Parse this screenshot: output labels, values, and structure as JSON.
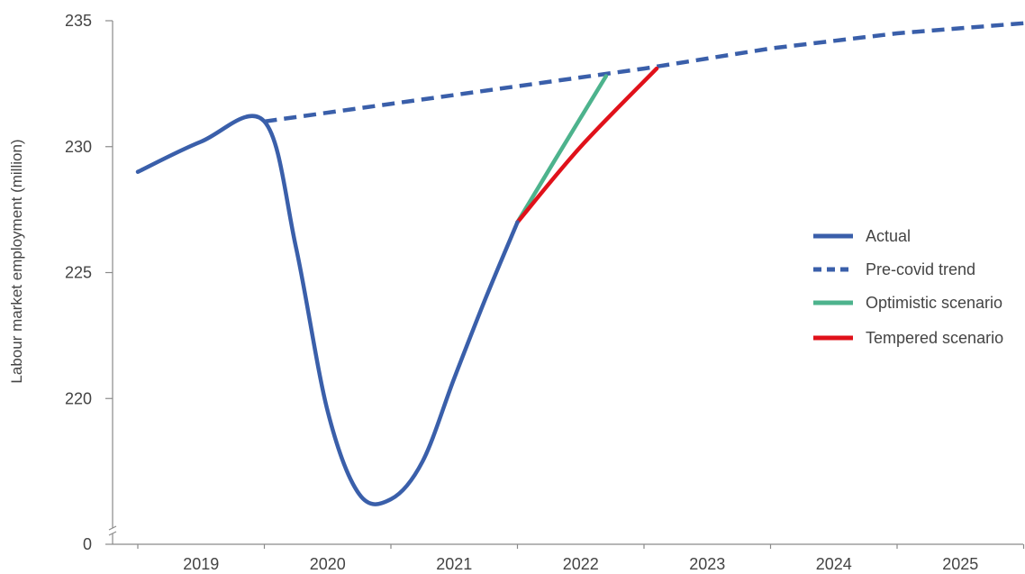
{
  "chart_data": {
    "type": "line",
    "title": "",
    "ylabel": "Labour market employment (million)",
    "xlabel": "",
    "x_categories": [
      "2019",
      "2020",
      "2021",
      "2022",
      "2023",
      "2024",
      "2025"
    ],
    "y_ticks": [
      "0",
      "220",
      "225",
      "230",
      "235"
    ],
    "ylim": [
      215,
      235
    ],
    "axis_break": true,
    "grid": false,
    "legend_position": "right",
    "series": [
      {
        "name": "Actual",
        "style": "solid",
        "color": "#3A5FAA",
        "points": [
          [
            2019.0,
            229.0
          ],
          [
            2019.5,
            230.2
          ],
          [
            2020.0,
            231.0
          ],
          [
            2020.25,
            226.0
          ],
          [
            2020.5,
            219.5
          ],
          [
            2020.75,
            216.2
          ],
          [
            2021.0,
            216.0
          ],
          [
            2021.25,
            217.5
          ],
          [
            2021.5,
            220.8
          ],
          [
            2021.75,
            224.0
          ],
          [
            2022.0,
            227.0
          ]
        ]
      },
      {
        "name": "Pre-covid trend",
        "style": "dashed",
        "color": "#3A5FAA",
        "points": [
          [
            2020.0,
            231.0
          ],
          [
            2021.0,
            231.7
          ],
          [
            2022.0,
            232.4
          ],
          [
            2023.0,
            233.1
          ],
          [
            2024.0,
            233.9
          ],
          [
            2025.0,
            234.5
          ],
          [
            2026.0,
            234.9
          ]
        ]
      },
      {
        "name": "Optimistic scenario",
        "style": "solid",
        "color": "#4DB38D",
        "points": [
          [
            2022.0,
            227.0
          ],
          [
            2022.3,
            229.5
          ],
          [
            2022.7,
            232.8
          ]
        ]
      },
      {
        "name": "Tempered scenario",
        "style": "solid",
        "color": "#E0111A",
        "points": [
          [
            2022.0,
            227.0
          ],
          [
            2022.5,
            230.0
          ],
          [
            2023.1,
            233.1
          ]
        ]
      }
    ]
  }
}
